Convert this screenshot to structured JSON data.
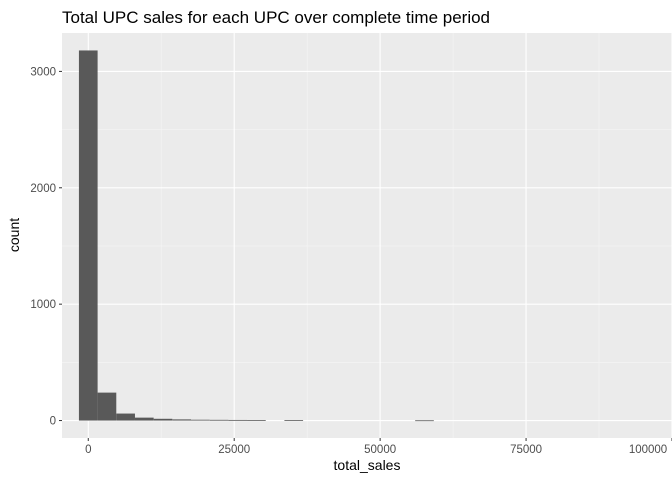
{
  "chart_data": {
    "type": "bar",
    "title": "Total UPC sales for each UPC over complete time period",
    "xlabel": "total_sales",
    "ylabel": "count",
    "xlim": [
      -4500,
      100000
    ],
    "ylim": [
      -150,
      3330
    ],
    "x_ticks": [
      {
        "value": 0,
        "label": "0"
      },
      {
        "value": 25000,
        "label": "25000"
      },
      {
        "value": 50000,
        "label": "50000"
      },
      {
        "value": 75000,
        "label": "75000"
      },
      {
        "value": 100000,
        "label": "100000"
      }
    ],
    "y_ticks": [
      {
        "value": 0,
        "label": "0"
      },
      {
        "value": 1000,
        "label": "1000"
      },
      {
        "value": 2000,
        "label": "2000"
      },
      {
        "value": 3000,
        "label": "3000"
      }
    ],
    "bin_width": 3200,
    "bins": [
      {
        "x0": -1600,
        "x1": 1600,
        "count": 3180
      },
      {
        "x0": 1600,
        "x1": 4800,
        "count": 240
      },
      {
        "x0": 4800,
        "x1": 8000,
        "count": 60
      },
      {
        "x0": 8000,
        "x1": 11200,
        "count": 25
      },
      {
        "x0": 11200,
        "x1": 14400,
        "count": 15
      },
      {
        "x0": 14400,
        "x1": 17600,
        "count": 10
      },
      {
        "x0": 17600,
        "x1": 20800,
        "count": 7
      },
      {
        "x0": 20800,
        "x1": 24000,
        "count": 6
      },
      {
        "x0": 24000,
        "x1": 27200,
        "count": 5
      },
      {
        "x0": 27200,
        "x1": 30400,
        "count": 4
      },
      {
        "x0": 33600,
        "x1": 36800,
        "count": 3
      },
      {
        "x0": 56000,
        "x1": 59200,
        "count": 2
      }
    ],
    "colors": {
      "panel": "#ebebeb",
      "grid_major": "#ffffff",
      "grid_minor": "#f5f5f5",
      "bar": "#595959"
    },
    "grid": true,
    "legend": "none"
  }
}
